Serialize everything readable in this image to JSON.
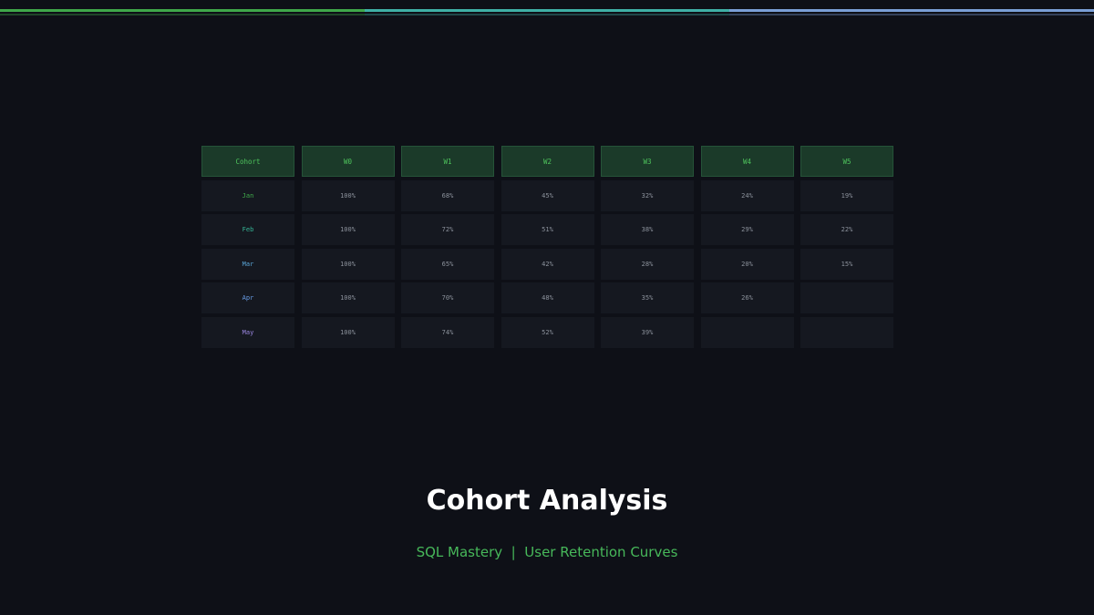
{
  "theme": {
    "background": "#0e1017",
    "header_bg": "#1b3a29",
    "header_text": "#4ec45c",
    "cell_bg": "#151820",
    "cell_text": "#8c929c",
    "accent_bar": [
      "#3fa84a",
      "#3fb0a6",
      "#7a9fd6"
    ]
  },
  "title": "Cohort Analysis",
  "subtitle": "SQL Mastery  |  User Retention Curves",
  "chart_data": {
    "type": "table",
    "columns": [
      "Cohort",
      "W0",
      "W1",
      "W2",
      "W3",
      "W4",
      "W5"
    ],
    "rows": [
      {
        "label": "Jan",
        "label_color": "#3fa84a",
        "values": [
          "100%",
          "68%",
          "45%",
          "32%",
          "24%",
          "19%"
        ]
      },
      {
        "label": "Feb",
        "label_color": "#35b596",
        "values": [
          "100%",
          "72%",
          "51%",
          "38%",
          "29%",
          "22%"
        ]
      },
      {
        "label": "Mar",
        "label_color": "#5aa6d8",
        "values": [
          "100%",
          "65%",
          "42%",
          "28%",
          "20%",
          "15%"
        ]
      },
      {
        "label": "Apr",
        "label_color": "#6a9ee8",
        "values": [
          "100%",
          "70%",
          "48%",
          "35%",
          "26%",
          ""
        ]
      },
      {
        "label": "May",
        "label_color": "#9a86e0",
        "values": [
          "100%",
          "74%",
          "52%",
          "39%",
          "",
          ""
        ]
      }
    ]
  }
}
